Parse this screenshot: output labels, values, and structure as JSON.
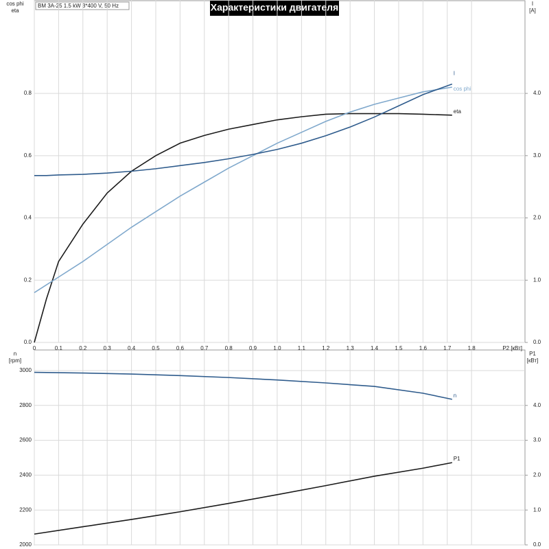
{
  "chart_data": [
    {
      "type": "line",
      "title": "Характеристики двигателя",
      "subtitle": "BM 3A-25   1.5 kW   3*400 V, 50 Hz",
      "y_label": [
        "cos phi",
        "eta"
      ],
      "y2_label": [
        "I",
        "[A]"
      ],
      "x_label": "P2 [кВт]",
      "x": [
        0,
        0.05,
        0.1,
        0.2,
        0.3,
        0.4,
        0.5,
        0.6,
        0.7,
        0.8,
        0.9,
        1.0,
        1.1,
        1.2,
        1.3,
        1.4,
        1.5,
        1.6,
        1.72
      ],
      "series": [
        {
          "name": "eta",
          "color": "#1a1a1a",
          "values": [
            0,
            0.14,
            0.26,
            0.38,
            0.48,
            0.55,
            0.6,
            0.64,
            0.665,
            0.685,
            0.7,
            0.715,
            0.725,
            0.733,
            0.735,
            0.735,
            0.735,
            0.733,
            0.73
          ]
        },
        {
          "name": "cos phi",
          "color": "#7fa8cc",
          "values": [
            0.16,
            0.185,
            0.21,
            0.26,
            0.315,
            0.37,
            0.42,
            0.47,
            0.515,
            0.56,
            0.6,
            0.64,
            0.675,
            0.71,
            0.74,
            0.765,
            0.785,
            0.805,
            0.82
          ]
        },
        {
          "name": "I",
          "color": "#2e5b8c",
          "axis": "y2",
          "values": [
            2.68,
            2.68,
            2.69,
            2.7,
            2.72,
            2.75,
            2.79,
            2.84,
            2.89,
            2.95,
            3.02,
            3.1,
            3.2,
            3.32,
            3.46,
            3.62,
            3.8,
            3.98,
            4.15
          ]
        }
      ],
      "xlim": [
        0,
        2.02
      ],
      "xticks": [
        0,
        {
          "value": 0.1,
          "label": "0,1"
        },
        {
          "value": 0.2,
          "label": "0,2"
        },
        {
          "value": 0.3,
          "label": "0,3"
        },
        {
          "value": 0.4,
          "label": "0,4"
        },
        {
          "value": 0.5,
          "label": "0,5"
        },
        {
          "value": 0.6,
          "label": "0,6"
        },
        {
          "value": 0.7,
          "label": "0,7"
        },
        {
          "value": 0.8,
          "label": "0,8"
        },
        {
          "value": 0.9,
          "label": "0,9"
        },
        {
          "value": 1.0,
          "label": "1,0"
        },
        {
          "value": 1.1,
          "label": "1,1"
        },
        {
          "value": 1.2,
          "label": "1,2"
        },
        {
          "value": 1.3,
          "label": "1,3"
        },
        {
          "value": 1.4,
          "label": "1,4"
        },
        {
          "value": 1.5,
          "label": "1,5"
        },
        {
          "value": 1.6,
          "label": "1,6"
        },
        {
          "value": 1.7,
          "label": "1,7"
        },
        {
          "value": 1.8,
          "label": "1,8"
        }
      ],
      "ylim": [
        0,
        1.1
      ],
      "yticks": [
        {
          "value": 0,
          "label": "0.0"
        },
        {
          "value": 0.2,
          "label": "0.2"
        },
        {
          "value": 0.4,
          "label": "0.4"
        },
        {
          "value": 0.6,
          "label": "0.6"
        },
        {
          "value": 0.8,
          "label": "0.8"
        }
      ],
      "y2lim": [
        0,
        5.5
      ],
      "y2ticks": [
        {
          "value": 0,
          "label": "0.0"
        },
        {
          "value": 1,
          "label": "1.0"
        },
        {
          "value": 2,
          "label": "2.0"
        },
        {
          "value": 3,
          "label": "3.0"
        },
        {
          "value": 4,
          "label": "4.0"
        }
      ],
      "grid": true
    },
    {
      "type": "line",
      "y_label": [
        "n",
        "[rpm]"
      ],
      "y2_label": [
        "P1",
        "[кВт]"
      ],
      "x": [
        0,
        0.2,
        0.4,
        0.6,
        0.8,
        1.0,
        1.2,
        1.4,
        1.6,
        1.72
      ],
      "series": [
        {
          "name": "n",
          "color": "#2e5b8c",
          "values": [
            2990,
            2986,
            2980,
            2971,
            2960,
            2946,
            2929,
            2909,
            2870,
            2835
          ]
        },
        {
          "name": "P1",
          "color": "#1a1a1a",
          "axis": "y2",
          "values": [
            0.31,
            0.52,
            0.73,
            0.95,
            1.19,
            1.44,
            1.7,
            1.97,
            2.2,
            2.36
          ]
        }
      ],
      "xlim": [
        0,
        2.02
      ],
      "ylim": [
        2000,
        3118
      ],
      "yticks": [
        2000,
        2200,
        2400,
        2600,
        2800,
        3000
      ],
      "y2lim": [
        0,
        5.59
      ],
      "y2ticks": [
        {
          "value": 0,
          "label": "0.0"
        },
        {
          "value": 1,
          "label": "1.0"
        },
        {
          "value": 2,
          "label": "2.0"
        },
        {
          "value": 3,
          "label": "3.0"
        },
        {
          "value": 4,
          "label": "4.0"
        }
      ],
      "grid": true
    }
  ]
}
